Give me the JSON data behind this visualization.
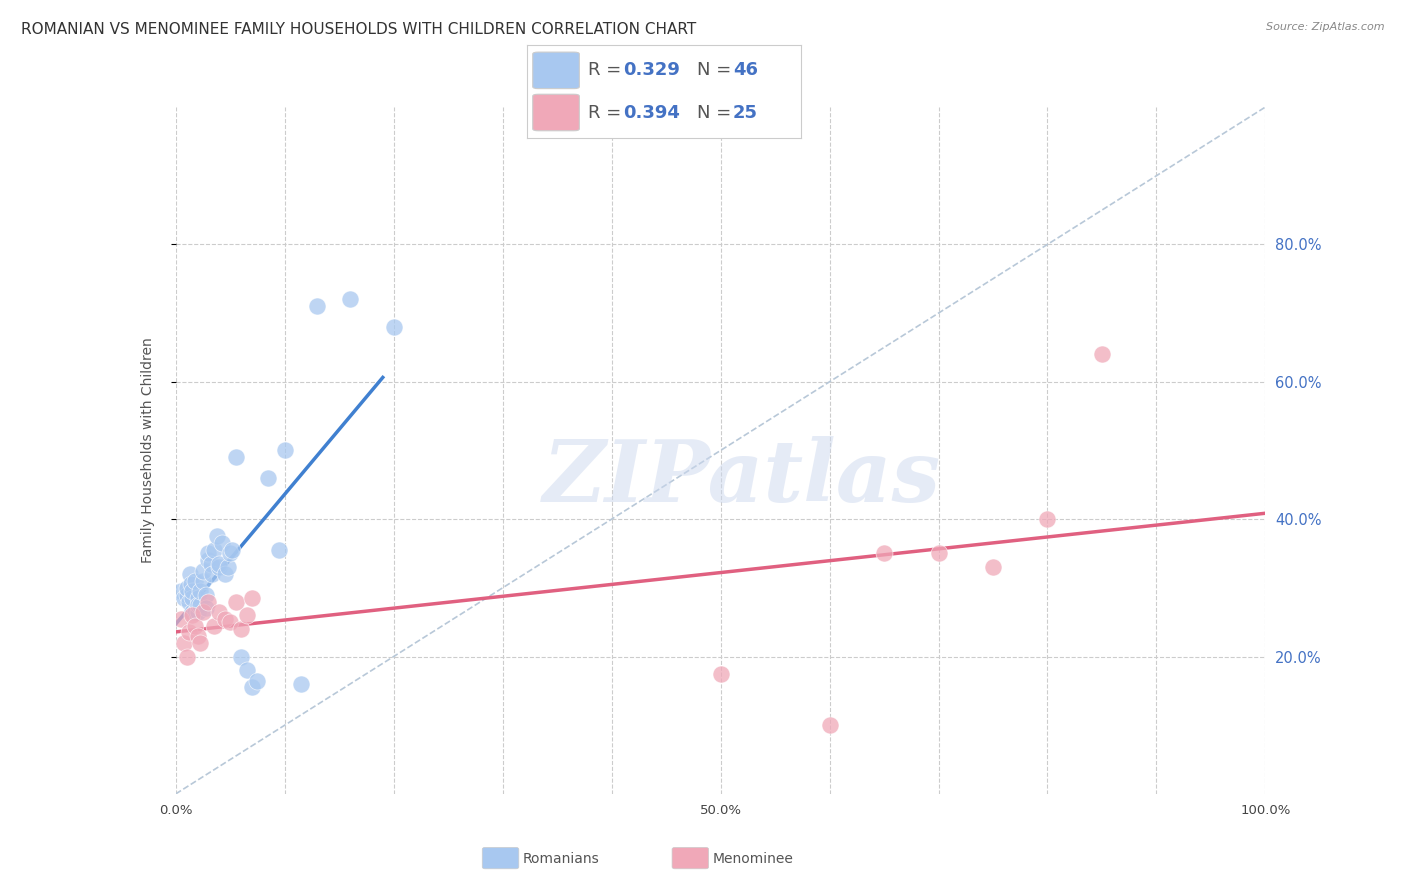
{
  "title": "ROMANIAN VS MENOMINEE FAMILY HOUSEHOLDS WITH CHILDREN CORRELATION CHART",
  "source": "Source: ZipAtlas.com",
  "ylabel": "Family Households with Children",
  "watermark": "ZIPatlas",
  "xlim": [
    0,
    1.0
  ],
  "ylim": [
    0,
    1.0
  ],
  "xticks": [
    0.0,
    0.1,
    0.2,
    0.3,
    0.4,
    0.5,
    0.6,
    0.7,
    0.8,
    0.9,
    1.0
  ],
  "xtick_labels": [
    "0.0%",
    "",
    "",
    "",
    "",
    "50.0%",
    "",
    "",
    "",
    "",
    "100.0%"
  ],
  "yticks": [
    0.2,
    0.4,
    0.6,
    0.8
  ],
  "ytick_labels_right": [
    "20.0%",
    "40.0%",
    "60.0%",
    "80.0%"
  ],
  "blue_color": "#a8c8f0",
  "pink_color": "#f0a8b8",
  "blue_line_color": "#4080d0",
  "pink_line_color": "#e06080",
  "diag_line_color": "#b8c8d8",
  "legend_R1": "0.329",
  "legend_N1": "46",
  "legend_R2": "0.394",
  "legend_N2": "25",
  "romanian_x": [
    0.005,
    0.008,
    0.01,
    0.01,
    0.012,
    0.013,
    0.014,
    0.015,
    0.015,
    0.015,
    0.018,
    0.018,
    0.02,
    0.02,
    0.02,
    0.022,
    0.022,
    0.025,
    0.025,
    0.028,
    0.028,
    0.03,
    0.03,
    0.032,
    0.033,
    0.035,
    0.038,
    0.04,
    0.04,
    0.042,
    0.045,
    0.048,
    0.05,
    0.052,
    0.055,
    0.06,
    0.065,
    0.07,
    0.075,
    0.085,
    0.095,
    0.1,
    0.115,
    0.13,
    0.16,
    0.2
  ],
  "romanian_y": [
    0.295,
    0.285,
    0.29,
    0.3,
    0.28,
    0.32,
    0.305,
    0.265,
    0.285,
    0.295,
    0.31,
    0.265,
    0.285,
    0.265,
    0.275,
    0.275,
    0.295,
    0.31,
    0.325,
    0.29,
    0.27,
    0.34,
    0.35,
    0.335,
    0.32,
    0.355,
    0.375,
    0.33,
    0.335,
    0.365,
    0.32,
    0.33,
    0.35,
    0.355,
    0.49,
    0.2,
    0.18,
    0.155,
    0.165,
    0.46,
    0.355,
    0.5,
    0.16,
    0.71,
    0.72,
    0.68
  ],
  "menominee_x": [
    0.005,
    0.008,
    0.01,
    0.012,
    0.015,
    0.018,
    0.02,
    0.022,
    0.025,
    0.03,
    0.035,
    0.04,
    0.045,
    0.05,
    0.055,
    0.06,
    0.065,
    0.07,
    0.5,
    0.6,
    0.65,
    0.7,
    0.75,
    0.8,
    0.85
  ],
  "menominee_y": [
    0.255,
    0.22,
    0.2,
    0.235,
    0.26,
    0.245,
    0.23,
    0.22,
    0.265,
    0.28,
    0.245,
    0.265,
    0.255,
    0.25,
    0.28,
    0.24,
    0.26,
    0.285,
    0.175,
    0.1,
    0.35,
    0.35,
    0.33,
    0.4,
    0.64
  ],
  "title_fontsize": 11,
  "axis_label_fontsize": 10,
  "tick_fontsize": 9.5
}
